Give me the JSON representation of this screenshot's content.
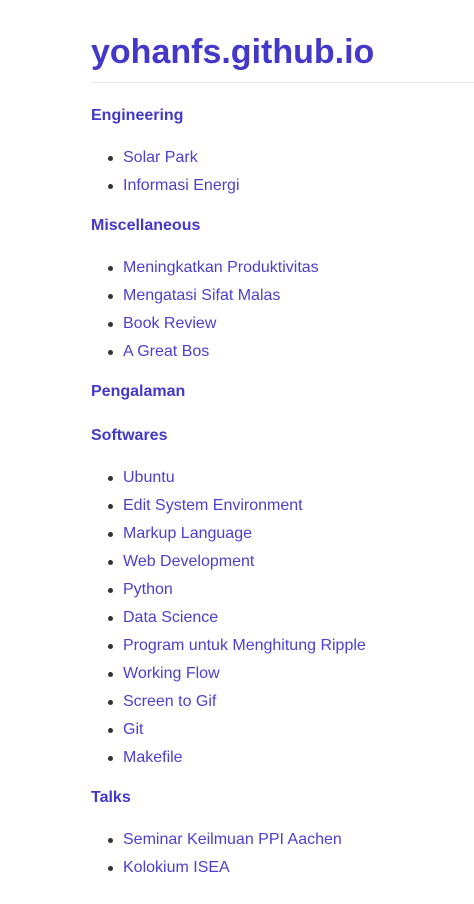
{
  "site": {
    "title": "yohanfs.github.io"
  },
  "sections": [
    {
      "title": "Engineering",
      "items": [
        "Solar Park",
        "Informasi Energi"
      ]
    },
    {
      "title": "Miscellaneous",
      "items": [
        "Meningkatkan Produktivitas",
        "Mengatasi Sifat Malas",
        "Book Review",
        "A Great Bos"
      ]
    },
    {
      "title": "Pengalaman",
      "items": []
    },
    {
      "title": "Softwares",
      "items": [
        "Ubuntu",
        "Edit System Environment",
        "Markup Language",
        "Web Development",
        "Python",
        "Data Science",
        "Program untuk Menghitung Ripple",
        "Working Flow",
        "Screen to Gif",
        "Git",
        "Makefile"
      ]
    },
    {
      "title": "Talks",
      "items": [
        "Seminar Keilmuan PPI Aachen",
        "Kolokium ISEA"
      ]
    }
  ]
}
